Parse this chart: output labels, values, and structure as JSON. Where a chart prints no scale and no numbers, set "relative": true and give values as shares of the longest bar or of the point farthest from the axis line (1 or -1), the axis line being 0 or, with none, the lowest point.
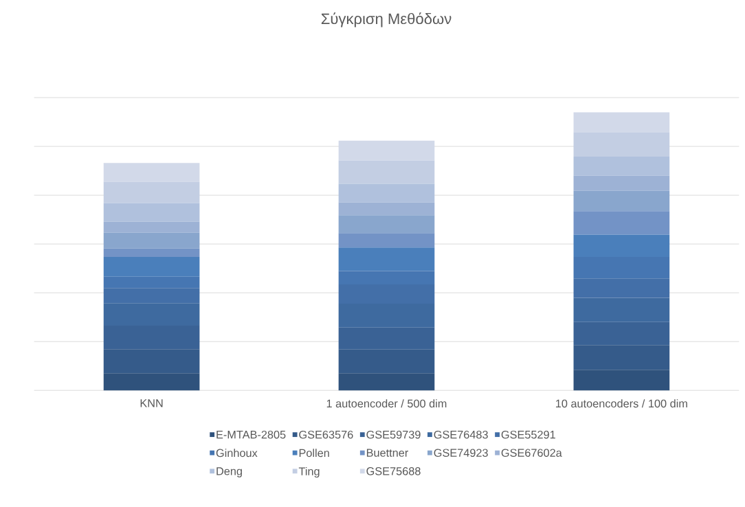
{
  "chart_data": {
    "type": "bar",
    "title": "Σύγκριση Μεθόδων",
    "stacked": true,
    "relative": true,
    "legend": "bottom",
    "grid": "y",
    "categories": [
      "KNN",
      "1 autoencoder / 500 dim",
      "10 autoencoders / 100 dim"
    ],
    "series": [
      {
        "name": "E-MTAB-2805",
        "color": "#2f527c",
        "values": [
          0.062,
          0.062,
          0.074
        ]
      },
      {
        "name": "GSE63576",
        "color": "#355b8a",
        "values": [
          0.086,
          0.085,
          0.089
        ]
      },
      {
        "name": "GSE59739",
        "color": "#3a6295",
        "values": [
          0.085,
          0.079,
          0.083
        ]
      },
      {
        "name": "GSE76483",
        "color": "#3e6a9f",
        "values": [
          0.081,
          0.086,
          0.087
        ]
      },
      {
        "name": "GSE55291",
        "color": "#436fa8",
        "values": [
          0.054,
          0.069,
          0.07
        ]
      },
      {
        "name": "Ginhoux",
        "color": "#4676b2",
        "values": [
          0.041,
          0.048,
          0.077
        ]
      },
      {
        "name": "Pollen",
        "color": "#4a7fbb",
        "values": [
          0.071,
          0.085,
          0.08
        ]
      },
      {
        "name": "Buettner",
        "color": "#7393c6",
        "values": [
          0.03,
          0.052,
          0.085
        ]
      },
      {
        "name": "GSE74923",
        "color": "#89a6cd",
        "values": [
          0.057,
          0.064,
          0.073
        ]
      },
      {
        "name": "GSE67602a",
        "color": "#9db2d5",
        "values": [
          0.04,
          0.046,
          0.055
        ]
      },
      {
        "name": "Deng",
        "color": "#b0c1dd",
        "values": [
          0.066,
          0.067,
          0.068
        ]
      },
      {
        "name": "Ting",
        "color": "#c3cee3",
        "values": [
          0.077,
          0.084,
          0.086
        ]
      },
      {
        "name": "GSE75688",
        "color": "#d2d9e9",
        "values": [
          0.068,
          0.071,
          0.073
        ]
      }
    ]
  }
}
